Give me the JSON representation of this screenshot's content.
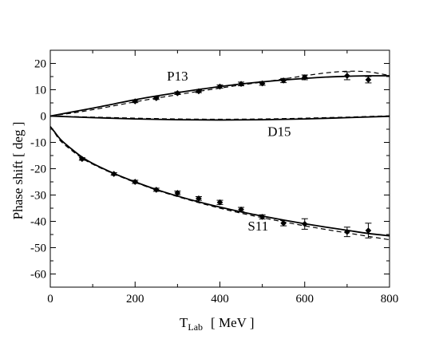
{
  "chart_data": {
    "type": "line",
    "xlabel": "T",
    "xlabel_sub": "Lab",
    "xlabel_unit": "[ MeV ]",
    "ylabel": "Phase shift   [ deg ]",
    "xlim": [
      0,
      800
    ],
    "ylim": [
      -65,
      25
    ],
    "xticks": [
      0,
      200,
      400,
      600,
      800
    ],
    "yticks": [
      20,
      10,
      0,
      -10,
      -20,
      -30,
      -40,
      -50,
      -60
    ],
    "grid": false,
    "series": [
      {
        "name": "P13",
        "solid": {
          "x": [
            0,
            50,
            100,
            150,
            200,
            250,
            300,
            350,
            400,
            450,
            500,
            550,
            600,
            650,
            700,
            750,
            800
          ],
          "y": [
            0,
            1.5,
            3.0,
            4.6,
            6.2,
            7.6,
            8.9,
            10.1,
            11.2,
            12.2,
            13.0,
            13.7,
            14.3,
            14.8,
            15.1,
            15.3,
            15.3
          ]
        },
        "dashed": {
          "x": [
            0,
            50,
            100,
            150,
            200,
            250,
            300,
            350,
            400,
            450,
            500,
            550,
            600,
            650,
            700,
            750,
            800
          ],
          "y": [
            0,
            1.1,
            2.4,
            3.9,
            5.4,
            6.8,
            8.1,
            9.4,
            10.6,
            11.8,
            12.9,
            14.1,
            15.3,
            16.4,
            17.0,
            16.8,
            15.4
          ]
        },
        "points": [
          {
            "x": 200,
            "y": 5.6,
            "err": 0.5
          },
          {
            "x": 250,
            "y": 6.8,
            "err": 0.5
          },
          {
            "x": 300,
            "y": 8.7,
            "err": 0.5
          },
          {
            "x": 350,
            "y": 9.4,
            "err": 0.5
          },
          {
            "x": 400,
            "y": 11.2,
            "err": 0.6
          },
          {
            "x": 450,
            "y": 12.2,
            "err": 0.7
          },
          {
            "x": 500,
            "y": 12.4,
            "err": 0.7
          },
          {
            "x": 550,
            "y": 13.5,
            "err": 0.8
          },
          {
            "x": 600,
            "y": 14.7,
            "err": 0.9
          },
          {
            "x": 700,
            "y": 15.3,
            "err": 1.5
          },
          {
            "x": 750,
            "y": 13.8,
            "err": 1.2
          }
        ]
      },
      {
        "name": "D15",
        "solid": {
          "x": [
            0,
            100,
            200,
            300,
            400,
            500,
            600,
            700,
            800
          ],
          "y": [
            0,
            -0.6,
            -1.1,
            -1.4,
            -1.5,
            -1.4,
            -1.1,
            -0.6,
            -0.1
          ]
        },
        "dashed": {
          "x": [
            0,
            100,
            200,
            300,
            400,
            500,
            600,
            700,
            800
          ],
          "y": [
            0,
            -0.4,
            -0.8,
            -1.1,
            -1.2,
            -1.1,
            -0.8,
            -0.4,
            0.1
          ]
        },
        "points": []
      },
      {
        "name": "S11",
        "solid": {
          "x": [
            0,
            10,
            25,
            50,
            75,
            100,
            150,
            200,
            250,
            300,
            350,
            400,
            450,
            500,
            550,
            600,
            650,
            700,
            750,
            800
          ],
          "y": [
            -4.0,
            -6.0,
            -9.0,
            -12.5,
            -15.6,
            -18.0,
            -21.8,
            -25.0,
            -27.9,
            -30.4,
            -32.6,
            -34.6,
            -36.4,
            -38.0,
            -39.5,
            -40.9,
            -42.2,
            -43.4,
            -44.6,
            -45.5
          ]
        },
        "dashed": {
          "x": [
            0,
            10,
            25,
            50,
            75,
            100,
            150,
            200,
            250,
            300,
            350,
            400,
            450,
            500,
            550,
            600,
            650,
            700,
            750,
            800
          ],
          "y": [
            -4.0,
            -6.3,
            -9.6,
            -13.0,
            -16.0,
            -18.3,
            -22.0,
            -25.2,
            -28.1,
            -30.6,
            -32.9,
            -35.0,
            -36.9,
            -38.6,
            -40.2,
            -41.7,
            -43.1,
            -44.4,
            -45.7,
            -47.0
          ]
        },
        "points": [
          {
            "x": 75,
            "y": -16.3,
            "err": 0.5
          },
          {
            "x": 150,
            "y": -22.0,
            "err": 0.5
          },
          {
            "x": 200,
            "y": -25.0,
            "err": 0.6
          },
          {
            "x": 250,
            "y": -28.0,
            "err": 0.6
          },
          {
            "x": 300,
            "y": -29.2,
            "err": 0.7
          },
          {
            "x": 350,
            "y": -31.3,
            "err": 0.7
          },
          {
            "x": 400,
            "y": -32.8,
            "err": 0.8
          },
          {
            "x": 450,
            "y": -35.5,
            "err": 0.8
          },
          {
            "x": 500,
            "y": -38.3,
            "err": 0.8
          },
          {
            "x": 550,
            "y": -40.7,
            "err": 1.0
          },
          {
            "x": 600,
            "y": -41.0,
            "err": 2.0
          },
          {
            "x": 700,
            "y": -44.0,
            "err": 1.8
          },
          {
            "x": 750,
            "y": -43.5,
            "err": 2.8
          }
        ]
      }
    ],
    "annotations": [
      {
        "text": "P13",
        "x": 300,
        "y": 13.5
      },
      {
        "text": "D15",
        "x": 540,
        "y": -7.5
      },
      {
        "text": "S11",
        "x": 490,
        "y": -43.5
      }
    ]
  }
}
